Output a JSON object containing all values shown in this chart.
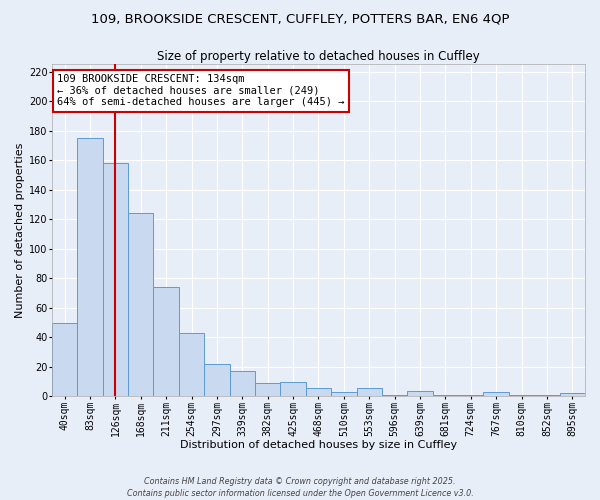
{
  "title1": "109, BROOKSIDE CRESCENT, CUFFLEY, POTTERS BAR, EN6 4QP",
  "title2": "Size of property relative to detached houses in Cuffley",
  "xlabel": "Distribution of detached houses by size in Cuffley",
  "ylabel": "Number of detached properties",
  "bar_color": "#c9d9f0",
  "bar_edge_color": "#5b9bd5",
  "background_color": "#e8eef8",
  "grid_color": "#ffffff",
  "fig_background": "#e8eef8",
  "bin_labels": [
    "40sqm",
    "83sqm",
    "126sqm",
    "168sqm",
    "211sqm",
    "254sqm",
    "297sqm",
    "339sqm",
    "382sqm",
    "425sqm",
    "468sqm",
    "510sqm",
    "553sqm",
    "596sqm",
    "639sqm",
    "681sqm",
    "724sqm",
    "767sqm",
    "810sqm",
    "852sqm",
    "895sqm"
  ],
  "bar_values": [
    50,
    175,
    158,
    124,
    74,
    43,
    22,
    17,
    9,
    10,
    6,
    3,
    6,
    1,
    4,
    1,
    1,
    3,
    1,
    1,
    2
  ],
  "ylim": [
    0,
    225
  ],
  "yticks": [
    0,
    20,
    40,
    60,
    80,
    100,
    120,
    140,
    160,
    180,
    200,
    220
  ],
  "property_line_x": 2,
  "property_line_color": "#cc0000",
  "annotation_text": "109 BROOKSIDE CRESCENT: 134sqm\n← 36% of detached houses are smaller (249)\n64% of semi-detached houses are larger (445) →",
  "annotation_box_color": "#ffffff",
  "annotation_box_edge": "#cc0000",
  "footer1": "Contains HM Land Registry data © Crown copyright and database right 2025.",
  "footer2": "Contains public sector information licensed under the Open Government Licence v3.0.",
  "title_fontsize": 9.5,
  "subtitle_fontsize": 8.5,
  "axis_label_fontsize": 8,
  "tick_fontsize": 7,
  "annotation_fontsize": 7.5,
  "footer_fontsize": 5.8
}
